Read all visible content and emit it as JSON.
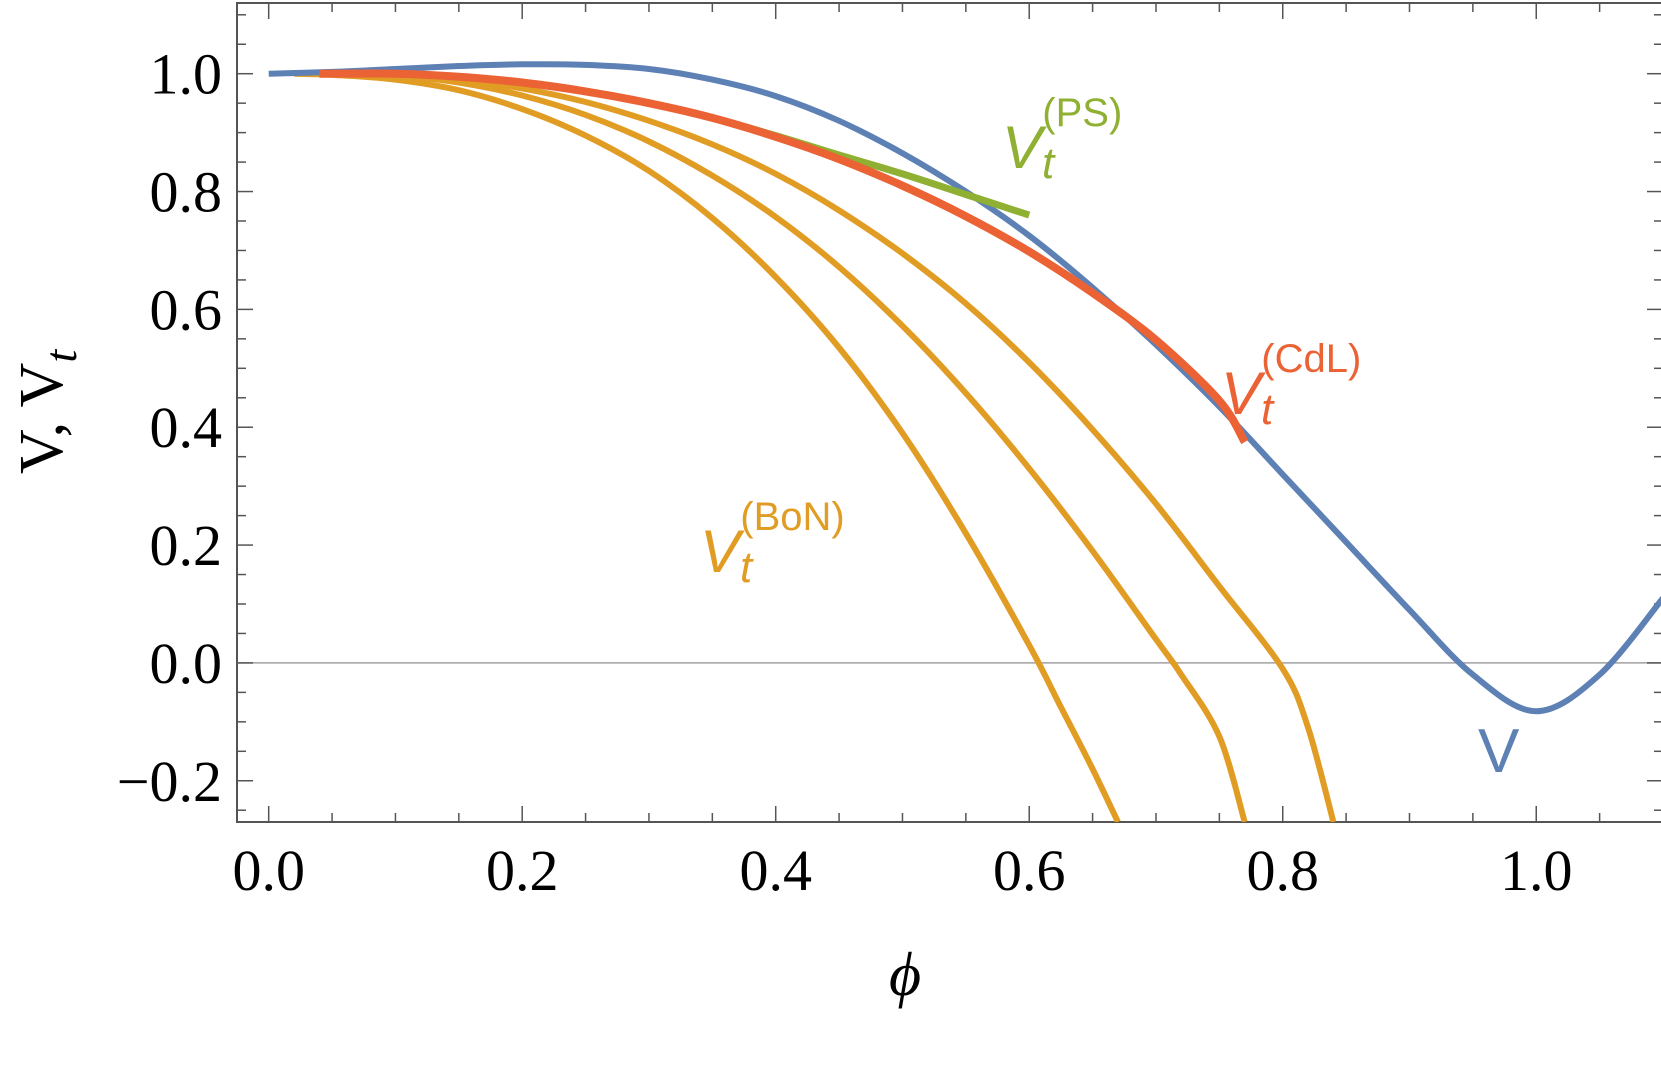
{
  "chart_data": {
    "type": "line",
    "xlabel": "ϕ",
    "ylabel": "V, V",
    "ylabel_sub": "t",
    "xlim": [
      -0.025,
      1.1
    ],
    "ylim": [
      -0.27,
      1.12
    ],
    "xticks": [
      0.0,
      0.2,
      0.4,
      0.6,
      0.8,
      1.0
    ],
    "xtick_labels": [
      "0.0",
      "0.2",
      "0.4",
      "0.6",
      "0.8",
      "1.0"
    ],
    "yticks": [
      -0.2,
      0.0,
      0.2,
      0.4,
      0.6,
      0.8,
      1.0
    ],
    "ytick_labels": [
      "−0.2",
      "0.0",
      "0.2",
      "0.4",
      "0.6",
      "0.8",
      "1.0"
    ],
    "zero_line": true,
    "grid": false,
    "colors": {
      "V": "#5e81b5",
      "BoN": "#e19c24",
      "CdL": "#eb6235",
      "PS": "#8fb032",
      "zero": "#a0a0a0"
    },
    "series": [
      {
        "name": "V",
        "label": "V",
        "color": "#5e81b5",
        "x": [
          0.0,
          0.05,
          0.1,
          0.15,
          0.2,
          0.25,
          0.3,
          0.35,
          0.4,
          0.45,
          0.5,
          0.55,
          0.6,
          0.65,
          0.7,
          0.75,
          0.8,
          0.85,
          0.9,
          0.95,
          1.0,
          1.05,
          1.1
        ],
        "y": [
          1.0,
          1.003,
          1.008,
          1.013,
          1.016,
          1.015,
          1.008,
          0.99,
          0.962,
          0.92,
          0.865,
          0.8,
          0.725,
          0.637,
          0.54,
          0.435,
          0.32,
          0.205,
          0.09,
          -0.02,
          -0.082,
          -0.02,
          0.11
        ]
      },
      {
        "name": "PS",
        "label_main": "V",
        "label_sub": "t",
        "label_sup": "(PS)",
        "color": "#8fb032",
        "x": [
          0.1,
          0.15,
          0.2,
          0.25,
          0.3,
          0.35,
          0.4,
          0.45,
          0.5,
          0.55,
          0.6
        ],
        "y": [
          1.0,
          0.995,
          0.985,
          0.97,
          0.95,
          0.925,
          0.895,
          0.862,
          0.83,
          0.795,
          0.76
        ]
      },
      {
        "name": "CdL",
        "label_main": "V",
        "label_sub": "t",
        "label_sup": "(CdL)",
        "color": "#eb6235",
        "x": [
          0.04,
          0.1,
          0.15,
          0.2,
          0.25,
          0.3,
          0.35,
          0.4,
          0.45,
          0.5,
          0.55,
          0.6,
          0.65,
          0.7,
          0.75,
          0.77
        ],
        "y": [
          1.0,
          1.0,
          0.995,
          0.985,
          0.97,
          0.95,
          0.925,
          0.893,
          0.855,
          0.81,
          0.758,
          0.698,
          0.628,
          0.548,
          0.445,
          0.375
        ]
      },
      {
        "name": "BoN",
        "label_main": "V",
        "label_sub": "t",
        "label_sup": "(BoN)",
        "color": "#e19c24",
        "curves": [
          {
            "x": [
              0.02,
              0.05,
              0.1,
              0.15,
              0.2,
              0.25,
              0.3,
              0.35,
              0.4,
              0.45,
              0.5,
              0.55,
              0.6,
              0.625,
              0.65,
              0.67
            ],
            "y": [
              1.0,
              0.998,
              0.99,
              0.972,
              0.94,
              0.895,
              0.835,
              0.755,
              0.655,
              0.535,
              0.39,
              0.22,
              0.03,
              -0.075,
              -0.18,
              -0.27
            ]
          },
          {
            "x": [
              0.05,
              0.1,
              0.15,
              0.2,
              0.25,
              0.3,
              0.35,
              0.4,
              0.45,
              0.5,
              0.55,
              0.6,
              0.65,
              0.7,
              0.72,
              0.75,
              0.77
            ],
            "y": [
              1.0,
              0.997,
              0.985,
              0.963,
              0.93,
              0.885,
              0.827,
              0.757,
              0.672,
              0.572,
              0.458,
              0.33,
              0.19,
              0.04,
              -0.02,
              -0.125,
              -0.27
            ]
          },
          {
            "x": [
              0.05,
              0.1,
              0.15,
              0.2,
              0.25,
              0.3,
              0.35,
              0.4,
              0.45,
              0.5,
              0.55,
              0.6,
              0.65,
              0.7,
              0.75,
              0.8,
              0.82,
              0.84
            ],
            "y": [
              1.0,
              0.998,
              0.99,
              0.975,
              0.952,
              0.92,
              0.88,
              0.83,
              0.768,
              0.695,
              0.61,
              0.51,
              0.396,
              0.27,
              0.13,
              -0.01,
              -0.11,
              -0.27
            ]
          }
        ]
      }
    ]
  }
}
